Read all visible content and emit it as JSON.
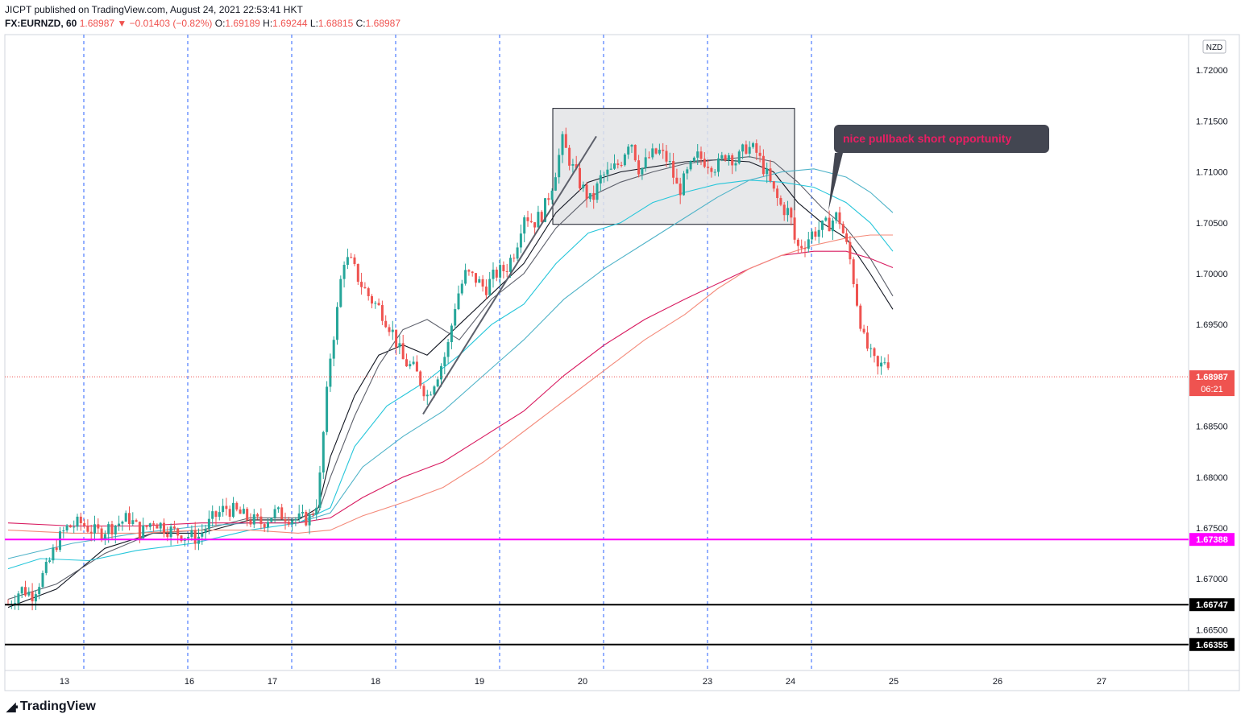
{
  "header": {
    "publisher": "JICPT published on TradingView.com, August 24, 2021 22:53:41 HKT",
    "symbol": "FX:EURNZD, 60",
    "last": "1.68987",
    "change_arrow": "▼",
    "change": "−0.01403 (−0.82%)",
    "o_label": "O:",
    "o": "1.69189",
    "h_label": "H:",
    "h": "1.69244",
    "l_label": "L:",
    "l": "1.68815",
    "c_label": "C:",
    "c": "1.68987"
  },
  "brand": {
    "name": "TradingView",
    "logo_icon": "tradingview-logo-icon"
  },
  "chart_data": {
    "type": "candlestick",
    "currency": "NZD",
    "ylim": [
      1.661,
      1.7235
    ],
    "y_ticks": [
      "1.72000",
      "1.71500",
      "1.71000",
      "1.70500",
      "1.70000",
      "1.69500",
      "1.69000",
      "1.68500",
      "1.68000",
      "1.67500",
      "1.67000",
      "1.66500"
    ],
    "x_ticks": [
      "13",
      "16",
      "17",
      "18",
      "19",
      "20",
      "23",
      "24",
      "25",
      "26",
      "27"
    ],
    "session_breaks": 8,
    "last_price": {
      "value": 1.68987,
      "label": "1.68987",
      "countdown": "06:21",
      "color": "#ef5350"
    },
    "horizontal_levels": [
      {
        "value": 1.67388,
        "label": "1.67388",
        "color": "#ff00ff"
      },
      {
        "value": 1.66747,
        "label": "1.66747",
        "color": "#000000"
      },
      {
        "value": 1.66355,
        "label": "1.66355",
        "color": "#000000"
      }
    ],
    "range_box": {
      "top": 1.71625,
      "bottom": 1.70485,
      "color": "#e3e4e6"
    },
    "annotation": {
      "text": "nice pullback short opportunity",
      "text_color": "#e91e63",
      "bg": "#434651"
    },
    "colors": {
      "up": "#26a69a",
      "down": "#ef5350",
      "grid": "#2962ff"
    },
    "price_path": [
      [
        0,
        1.6675
      ],
      [
        16,
        1.669
      ],
      [
        30,
        1.6685
      ],
      [
        48,
        1.671
      ],
      [
        60,
        1.6735
      ],
      [
        72,
        1.675
      ],
      [
        90,
        1.6755
      ],
      [
        110,
        1.6745
      ],
      [
        130,
        1.6752
      ],
      [
        150,
        1.676
      ],
      [
        165,
        1.6745
      ],
      [
        180,
        1.6758
      ],
      [
        195,
        1.675
      ],
      [
        210,
        1.6745
      ],
      [
        225,
        1.6742
      ],
      [
        235,
        1.674
      ],
      [
        245,
        1.675
      ],
      [
        255,
        1.676
      ],
      [
        270,
        1.677
      ],
      [
        285,
        1.6765
      ],
      [
        300,
        1.6758
      ],
      [
        315,
        1.6755
      ],
      [
        330,
        1.6765
      ],
      [
        345,
        1.6762
      ],
      [
        360,
        1.6758
      ],
      [
        375,
        1.676
      ],
      [
        385,
        1.678
      ],
      [
        392,
        1.685
      ],
      [
        400,
        1.692
      ],
      [
        408,
        1.696
      ],
      [
        416,
        1.7015
      ],
      [
        426,
        1.701
      ],
      [
        438,
        1.699
      ],
      [
        450,
        1.6975
      ],
      [
        462,
        1.6965
      ],
      [
        476,
        1.6945
      ],
      [
        490,
        1.6915
      ],
      [
        505,
        1.6905
      ],
      [
        520,
        1.688
      ],
      [
        532,
        1.69
      ],
      [
        545,
        1.6925
      ],
      [
        556,
        1.6975
      ],
      [
        568,
        1.7
      ],
      [
        580,
        1.6995
      ],
      [
        592,
        1.6985
      ],
      [
        605,
        1.7
      ],
      [
        618,
        1.7005
      ],
      [
        630,
        1.7025
      ],
      [
        640,
        1.706
      ],
      [
        652,
        1.705
      ],
      [
        664,
        1.706
      ],
      [
        676,
        1.709
      ],
      [
        688,
        1.713
      ],
      [
        700,
        1.7105
      ],
      [
        712,
        1.7085
      ],
      [
        724,
        1.707
      ],
      [
        736,
        1.7095
      ],
      [
        748,
        1.71
      ],
      [
        760,
        1.711
      ],
      [
        772,
        1.7135
      ],
      [
        784,
        1.71
      ],
      [
        796,
        1.7115
      ],
      [
        808,
        1.712
      ],
      [
        820,
        1.711
      ],
      [
        832,
        1.708
      ],
      [
        844,
        1.71
      ],
      [
        856,
        1.7115
      ],
      [
        868,
        1.711
      ],
      [
        880,
        1.7105
      ],
      [
        892,
        1.712
      ],
      [
        904,
        1.711
      ],
      [
        916,
        1.7125
      ],
      [
        928,
        1.712
      ],
      [
        940,
        1.71
      ],
      [
        950,
        1.708
      ],
      [
        960,
        1.7065
      ],
      [
        970,
        1.706
      ],
      [
        978,
        1.7025
      ],
      [
        988,
        1.703
      ],
      [
        998,
        1.704
      ],
      [
        1010,
        1.7045
      ],
      [
        1020,
        1.705
      ],
      [
        1030,
        1.7058
      ],
      [
        1038,
        1.7035
      ],
      [
        1046,
        1.701
      ],
      [
        1054,
        1.697
      ],
      [
        1062,
        1.6935
      ],
      [
        1070,
        1.692
      ],
      [
        1080,
        1.6905
      ],
      [
        1090,
        1.6918
      ],
      [
        1100,
        1.6898
      ]
    ],
    "ma_lines": [
      {
        "color": "#131722",
        "points": [
          [
            0,
            1.6672
          ],
          [
            60,
            1.669
          ],
          [
            120,
            1.673
          ],
          [
            180,
            1.6745
          ],
          [
            240,
            1.6745
          ],
          [
            300,
            1.6758
          ],
          [
            360,
            1.6758
          ],
          [
            385,
            1.677
          ],
          [
            400,
            1.682
          ],
          [
            430,
            1.688
          ],
          [
            460,
            1.692
          ],
          [
            490,
            1.693
          ],
          [
            520,
            1.692
          ],
          [
            560,
            1.695
          ],
          [
            600,
            1.698
          ],
          [
            640,
            1.701
          ],
          [
            680,
            1.706
          ],
          [
            720,
            1.709
          ],
          [
            760,
            1.71
          ],
          [
            800,
            1.7105
          ],
          [
            840,
            1.711
          ],
          [
            880,
            1.7112
          ],
          [
            920,
            1.711
          ],
          [
            950,
            1.71
          ],
          [
            980,
            1.707
          ],
          [
            1010,
            1.705
          ],
          [
            1040,
            1.7035
          ],
          [
            1070,
            1.7
          ],
          [
            1098,
            1.6965
          ]
        ]
      },
      {
        "color": "#5d606b",
        "points": [
          [
            0,
            1.668
          ],
          [
            60,
            1.6695
          ],
          [
            120,
            1.6725
          ],
          [
            180,
            1.6745
          ],
          [
            240,
            1.6748
          ],
          [
            300,
            1.676
          ],
          [
            360,
            1.676
          ],
          [
            385,
            1.6765
          ],
          [
            400,
            1.68
          ],
          [
            430,
            1.686
          ],
          [
            460,
            1.691
          ],
          [
            490,
            1.6945
          ],
          [
            520,
            1.6955
          ],
          [
            560,
            1.6935
          ],
          [
            600,
            1.6975
          ],
          [
            640,
            1.7
          ],
          [
            680,
            1.7045
          ],
          [
            720,
            1.7075
          ],
          [
            760,
            1.709
          ],
          [
            800,
            1.71
          ],
          [
            840,
            1.7108
          ],
          [
            880,
            1.7112
          ],
          [
            920,
            1.7115
          ],
          [
            950,
            1.711
          ],
          [
            980,
            1.709
          ],
          [
            1010,
            1.7065
          ],
          [
            1040,
            1.7045
          ],
          [
            1070,
            1.7015
          ],
          [
            1098,
            1.6978
          ]
        ]
      },
      {
        "color": "#26c6da",
        "points": [
          [
            0,
            1.671
          ],
          [
            40,
            1.672
          ],
          [
            100,
            1.6718
          ],
          [
            160,
            1.6728
          ],
          [
            230,
            1.6735
          ],
          [
            300,
            1.6748
          ],
          [
            360,
            1.6755
          ],
          [
            400,
            1.677
          ],
          [
            430,
            1.683
          ],
          [
            470,
            1.687
          ],
          [
            520,
            1.6895
          ],
          [
            560,
            1.692
          ],
          [
            600,
            1.695
          ],
          [
            640,
            1.697
          ],
          [
            680,
            1.701
          ],
          [
            720,
            1.704
          ],
          [
            760,
            1.705
          ],
          [
            800,
            1.707
          ],
          [
            840,
            1.708
          ],
          [
            880,
            1.7088
          ],
          [
            920,
            1.7092
          ],
          [
            960,
            1.709
          ],
          [
            1000,
            1.7085
          ],
          [
            1040,
            1.707
          ],
          [
            1070,
            1.705
          ],
          [
            1098,
            1.7022
          ]
        ]
      },
      {
        "color": "#4fb3c8",
        "points": [
          [
            0,
            1.672
          ],
          [
            80,
            1.6735
          ],
          [
            160,
            1.6745
          ],
          [
            240,
            1.6752
          ],
          [
            300,
            1.6755
          ],
          [
            360,
            1.6755
          ],
          [
            400,
            1.6765
          ],
          [
            440,
            1.681
          ],
          [
            490,
            1.684
          ],
          [
            540,
            1.6865
          ],
          [
            590,
            1.69
          ],
          [
            640,
            1.6935
          ],
          [
            690,
            1.6975
          ],
          [
            740,
            1.7005
          ],
          [
            790,
            1.703
          ],
          [
            840,
            1.7055
          ],
          [
            880,
            1.7075
          ],
          [
            920,
            1.7092
          ],
          [
            960,
            1.71
          ],
          [
            1000,
            1.7103
          ],
          [
            1040,
            1.7095
          ],
          [
            1070,
            1.708
          ],
          [
            1098,
            1.706
          ]
        ]
      },
      {
        "color": "#d81b60",
        "points": [
          [
            0,
            1.6755
          ],
          [
            80,
            1.6752
          ],
          [
            160,
            1.6752
          ],
          [
            240,
            1.6755
          ],
          [
            300,
            1.6755
          ],
          [
            360,
            1.6755
          ],
          [
            400,
            1.676
          ],
          [
            440,
            1.678
          ],
          [
            490,
            1.68
          ],
          [
            540,
            1.6815
          ],
          [
            590,
            1.684
          ],
          [
            640,
            1.6865
          ],
          [
            690,
            1.69
          ],
          [
            740,
            1.693
          ],
          [
            790,
            1.6955
          ],
          [
            840,
            1.6975
          ],
          [
            880,
            1.699
          ],
          [
            920,
            1.7005
          ],
          [
            960,
            1.7018
          ],
          [
            1000,
            1.7022
          ],
          [
            1040,
            1.7022
          ],
          [
            1070,
            1.7015
          ],
          [
            1098,
            1.7006
          ]
        ]
      },
      {
        "color": "#f48a7a",
        "points": [
          [
            0,
            1.6748
          ],
          [
            80,
            1.6745
          ],
          [
            160,
            1.6745
          ],
          [
            240,
            1.6748
          ],
          [
            300,
            1.6748
          ],
          [
            360,
            1.6745
          ],
          [
            400,
            1.6748
          ],
          [
            440,
            1.6762
          ],
          [
            490,
            1.6775
          ],
          [
            540,
            1.679
          ],
          [
            590,
            1.6815
          ],
          [
            640,
            1.6845
          ],
          [
            690,
            1.6875
          ],
          [
            740,
            1.6905
          ],
          [
            790,
            1.6935
          ],
          [
            840,
            1.696
          ],
          [
            880,
            1.6985
          ],
          [
            920,
            1.7005
          ],
          [
            960,
            1.7018
          ],
          [
            1000,
            1.7028
          ],
          [
            1040,
            1.7035
          ],
          [
            1070,
            1.7038
          ],
          [
            1098,
            1.7038
          ]
        ]
      }
    ],
    "trend_line": {
      "color": "#5d606b",
      "from": [
        525,
        1.6862
      ],
      "to": [
        740,
        1.7135
      ]
    }
  }
}
